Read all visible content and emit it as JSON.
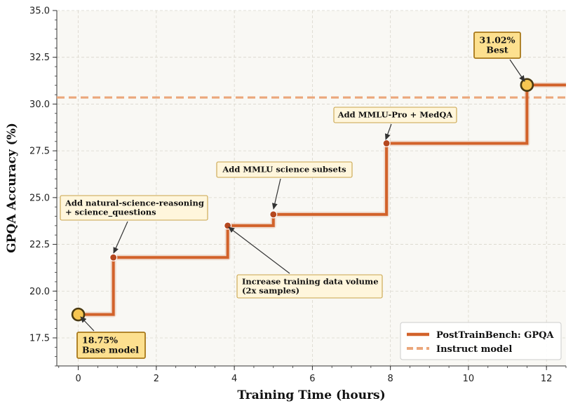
{
  "chart_data": {
    "type": "line",
    "title": "",
    "xlabel": "Training Time (hours)",
    "ylabel": "GPQA Accuracy (%)",
    "xlim": [
      -0.55,
      12.5
    ],
    "ylim": [
      16.0,
      35.0
    ],
    "xticks": [
      0,
      2,
      4,
      6,
      8,
      10,
      12
    ],
    "yticks": [
      17.5,
      20.0,
      22.5,
      25.0,
      27.5,
      30.0,
      32.5,
      35.0
    ],
    "xtick_labels": [
      "0",
      "2",
      "4",
      "6",
      "8",
      "10",
      "12"
    ],
    "ytick_labels": [
      "17.5",
      "20.0",
      "22.5",
      "25.0",
      "27.5",
      "30.0",
      "32.5",
      "35.0"
    ],
    "grid": true,
    "series": [
      {
        "name": "PostTrainBench: GPQA",
        "style": "step",
        "color": "#d2622a",
        "x": [
          0,
          0.9,
          3.83,
          5.0,
          7.9,
          11.5,
          12.5
        ],
        "y": [
          18.75,
          21.8,
          23.5,
          24.1,
          27.9,
          31.02,
          31.02
        ]
      },
      {
        "name": "Instruct model",
        "style": "dashed-hline",
        "color": "#eba77b",
        "y": 30.35
      }
    ],
    "points": [
      {
        "x": 0,
        "y": 18.75,
        "kind": "highlight"
      },
      {
        "x": 0.9,
        "y": 21.8,
        "kind": "step"
      },
      {
        "x": 3.83,
        "y": 23.5,
        "kind": "step"
      },
      {
        "x": 5.0,
        "y": 24.1,
        "kind": "step"
      },
      {
        "x": 7.9,
        "y": 27.9,
        "kind": "step"
      },
      {
        "x": 11.5,
        "y": 31.02,
        "kind": "highlight"
      }
    ],
    "annotations": [
      {
        "lines": [
          "31.02%",
          "Best"
        ],
        "style": "gold"
      },
      {
        "lines": [
          "Add MMLU-Pro + MedQA"
        ],
        "style": "light"
      },
      {
        "lines": [
          "Add MMLU science subsets"
        ],
        "style": "light"
      },
      {
        "lines": [
          "Add natural-science-reasoning",
          "+ science_questions"
        ],
        "style": "light"
      },
      {
        "lines": [
          "Increase training data volume",
          "(2x samples)"
        ],
        "style": "light"
      },
      {
        "lines": [
          "18.75%",
          "Base model"
        ],
        "style": "gold"
      }
    ],
    "legend": {
      "position": "bottom-right",
      "entries": [
        "PostTrainBench: GPQA",
        "Instruct model"
      ]
    },
    "colors": {
      "step_line": "#d2622a",
      "step_marker": "#b5481f",
      "instruct_line": "#eba77b",
      "highlight_fill": "#f7c652",
      "highlight_stroke": "#4a3a12",
      "gold_box_fill": "#fde08f",
      "gold_box_stroke": "#a8781a",
      "light_box_fill": "#fff6dc",
      "light_box_stroke": "#c9a44a",
      "plot_bg": "#f9f8f4"
    }
  }
}
